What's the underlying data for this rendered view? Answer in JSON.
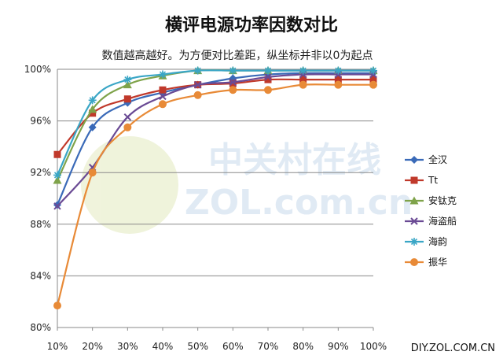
{
  "chart_data": {
    "type": "line",
    "title": "横评电源功率因数对比",
    "subtitle": "数值越高越好。为方便对比差距，纵坐标并非以0为起点",
    "categories": [
      "10%",
      "20%",
      "30%",
      "40%",
      "50%",
      "60%",
      "70%",
      "80%",
      "90%",
      "100%"
    ],
    "yticks": [
      "80%",
      "84%",
      "88%",
      "92%",
      "96%",
      "100%"
    ],
    "ylim": [
      80,
      100
    ],
    "grid": true,
    "legend_position": "right",
    "series": [
      {
        "name": "全汉",
        "color": "#3a6ab8",
        "marker": "diamond",
        "values": [
          89.5,
          95.5,
          97.4,
          98.2,
          98.8,
          99.3,
          99.6,
          99.7,
          99.7,
          99.7
        ]
      },
      {
        "name": "Tt",
        "color": "#c0392b",
        "marker": "square",
        "values": [
          93.4,
          96.6,
          97.7,
          98.4,
          98.8,
          98.9,
          99.2,
          99.2,
          99.2,
          99.2
        ]
      },
      {
        "name": "安钛克",
        "color": "#7fa34a",
        "marker": "triangle",
        "values": [
          91.4,
          96.9,
          98.8,
          99.5,
          99.9,
          99.9,
          99.9,
          99.9,
          99.9,
          99.9
        ]
      },
      {
        "name": "海盗船",
        "color": "#6a4a94",
        "marker": "x",
        "values": [
          89.4,
          92.4,
          96.3,
          97.9,
          98.8,
          99.0,
          99.4,
          99.6,
          99.6,
          99.6
        ]
      },
      {
        "name": "海韵",
        "color": "#3aa6c6",
        "marker": "star",
        "values": [
          91.8,
          97.6,
          99.2,
          99.6,
          99.9,
          99.9,
          99.9,
          99.9,
          99.9,
          99.9
        ]
      },
      {
        "name": "振华",
        "color": "#e88a37",
        "marker": "circle",
        "values": [
          81.7,
          92.0,
          95.5,
          97.3,
          98.0,
          98.4,
          98.4,
          98.8,
          98.8,
          98.8
        ]
      }
    ]
  },
  "watermark": {
    "line1": "中关村在线",
    "line2": "ZOL.com.cn"
  },
  "footer": "DIY.ZOL.COM.CN"
}
